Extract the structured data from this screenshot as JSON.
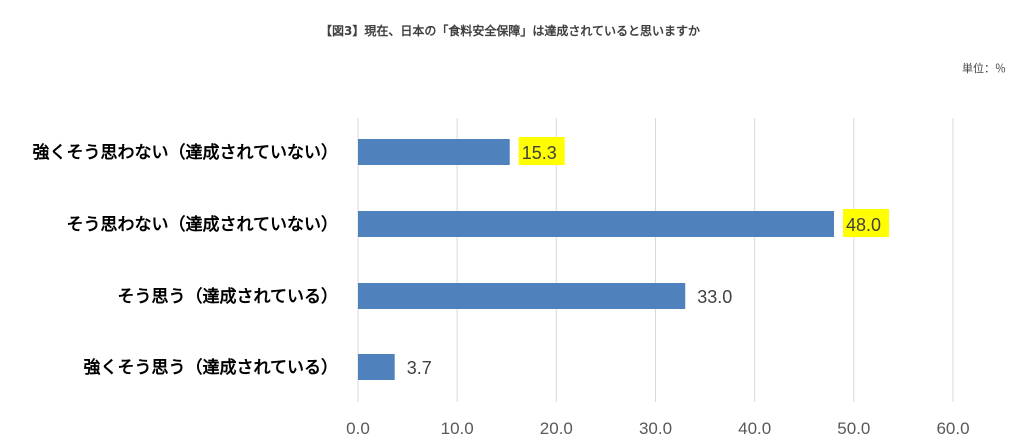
{
  "chart_data": {
    "type": "bar",
    "orientation": "horizontal",
    "title": "【図3】現在、日本の「食料安全保障」は達成されていると思いますか",
    "unit_label": "単位：％",
    "categories": [
      "強くそう思わない（達成されていない）",
      "そう思わない（達成されていない）",
      "そう思う（達成されている）",
      "強くそう思う（達成されている）"
    ],
    "values": [
      15.3,
      48.0,
      33.0,
      3.7
    ],
    "value_labels": [
      "15.3",
      "48.0",
      "33.0",
      "3.7"
    ],
    "highlighted": [
      true,
      true,
      false,
      false
    ],
    "xlim": [
      0,
      60
    ],
    "ticks": [
      0,
      10,
      20,
      30,
      40,
      50,
      60
    ],
    "tick_labels": [
      "0.0",
      "10.0",
      "20.0",
      "30.0",
      "40.0",
      "50.0",
      "60.0"
    ],
    "grid": true,
    "colors": {
      "bar": "#4f81bd",
      "grid": "#d9d9d9",
      "highlight": "#ffff00"
    }
  }
}
